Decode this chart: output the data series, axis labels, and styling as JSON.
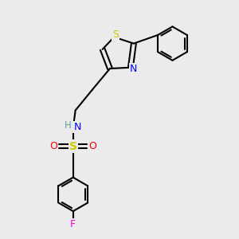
{
  "background_color": "#ebebeb",
  "atom_colors": {
    "S_sulfo": "#cccc00",
    "S_thia": "#cccc00",
    "N": "#0000ff",
    "O": "#ff0000",
    "F": "#ff00cc",
    "H": "#5f9ea0",
    "C": "#000000"
  },
  "bond_lw": 1.5,
  "font_size": 9
}
